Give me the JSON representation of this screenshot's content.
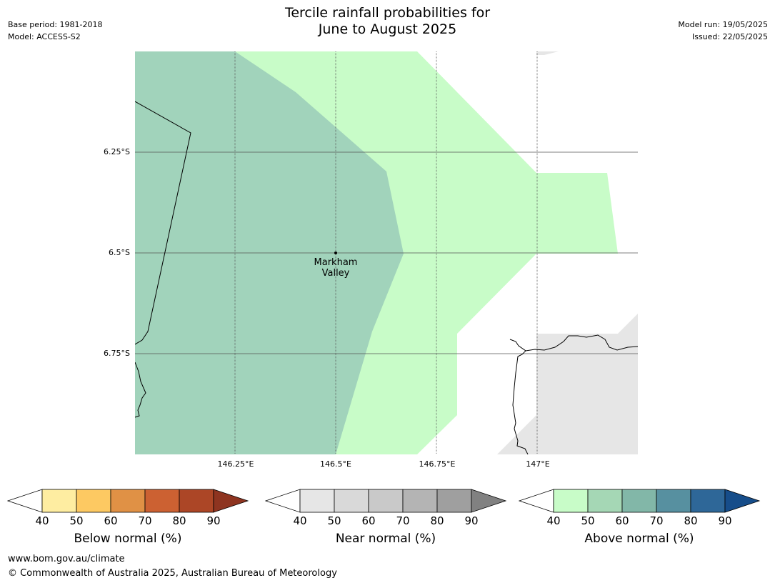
{
  "header": {
    "base_period": "Base period: 1981-2018",
    "model": "Model: ACCESS-S2",
    "model_run": "Model run: 19/05/2025",
    "issued": "Issued: 22/05/2025"
  },
  "title": {
    "line1": "Tercile rainfall probabilities for",
    "line2": "June to August 2025"
  },
  "map": {
    "lat_labels": [
      "6.25°S",
      "6.5°S",
      "6.75°S"
    ],
    "lon_labels": [
      "146.25°E",
      "146.5°E",
      "146.75°E",
      "147°E"
    ],
    "place": {
      "line1": "Markham",
      "line2": "Valley"
    },
    "colors": {
      "above_50_60": "#a1d3bb",
      "above_40_50": "#c8fcc8",
      "near_40_50": "#e6e6e6",
      "coastline": "#000000",
      "gridline": "#555555"
    }
  },
  "legends": [
    {
      "title": "Below normal (%)",
      "ticks": [
        "40",
        "50",
        "60",
        "70",
        "80",
        "90"
      ],
      "colors": [
        "#ffffff",
        "#feeda1",
        "#fdc962",
        "#e09145",
        "#cc6132",
        "#ac4626",
        "#8e3420"
      ]
    },
    {
      "title": "Near normal (%)",
      "ticks": [
        "40",
        "50",
        "60",
        "70",
        "80",
        "90"
      ],
      "colors": [
        "#ffffff",
        "#e6e6e6",
        "#d9d9d9",
        "#c9c9c9",
        "#b4b4b4",
        "#9f9f9f",
        "#818181"
      ]
    },
    {
      "title": "Above normal (%)",
      "ticks": [
        "40",
        "50",
        "60",
        "70",
        "80",
        "90"
      ],
      "colors": [
        "#ffffff",
        "#c8fcc8",
        "#a5d7b5",
        "#82b7a8",
        "#5790a0",
        "#2e6798",
        "#164d8a"
      ]
    }
  ],
  "footer": {
    "url": "www.bom.gov.au/climate",
    "copyright": "© Commonwealth of Australia 2025, Australian Bureau of Meteorology"
  }
}
